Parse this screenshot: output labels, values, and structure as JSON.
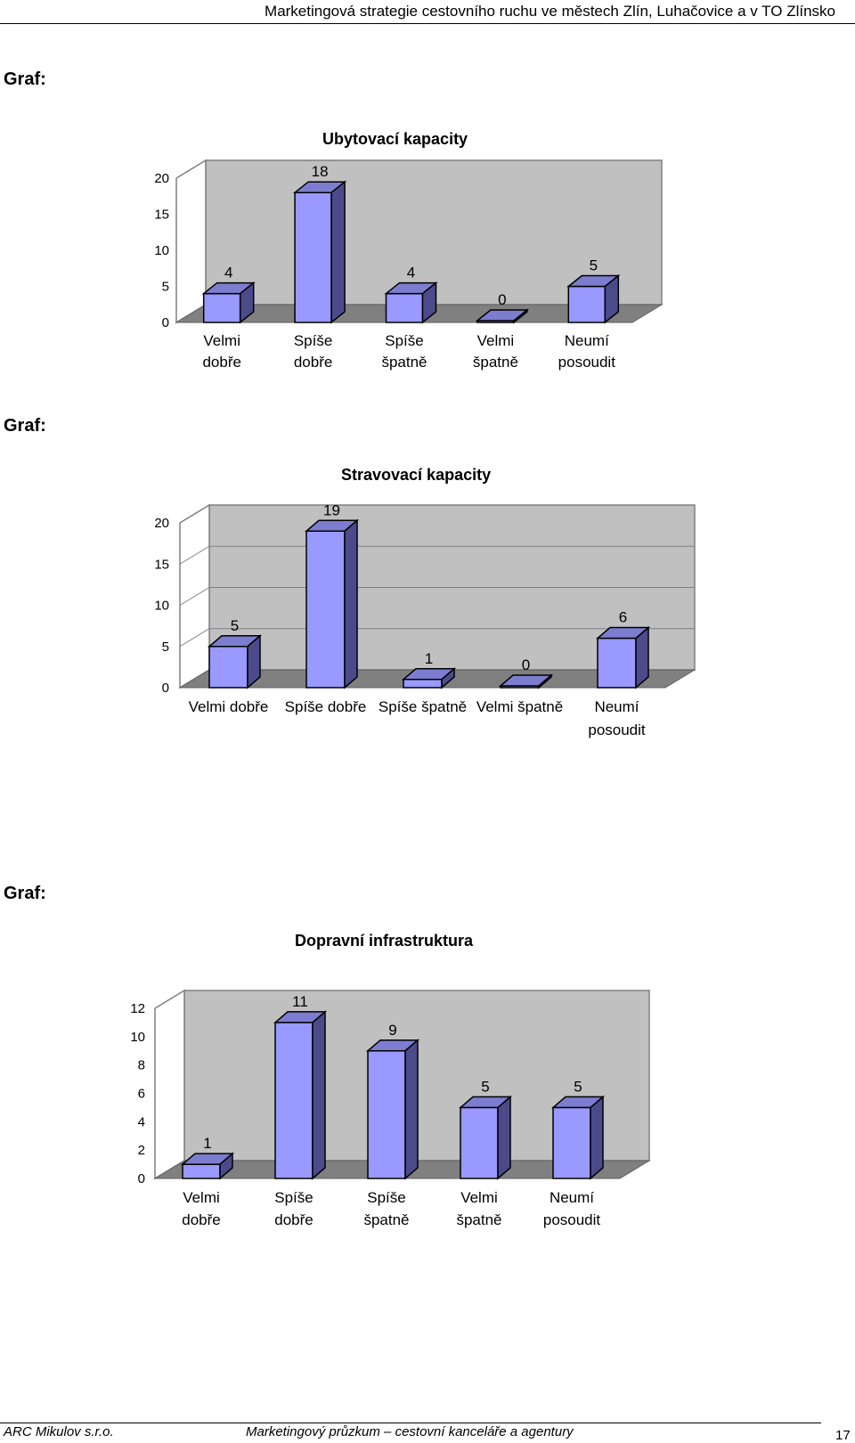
{
  "header": {
    "title": "Marketingová strategie cestovního ruchu ve městech Zlín, Luhačovice a v TO Zlínsko"
  },
  "graf_label": "Graf:",
  "chart_data": [
    {
      "type": "bar",
      "title": "Ubytovací kapacity",
      "categories": [
        [
          "Velmi",
          "dobře"
        ],
        [
          "Spíše",
          "dobře"
        ],
        [
          "Spíše",
          "špatně"
        ],
        [
          "Velmi",
          "špatně"
        ],
        [
          "Neumí",
          "posoudit"
        ]
      ],
      "values": [
        4,
        18,
        4,
        0,
        5
      ],
      "yticks": [
        "0",
        "5",
        "10",
        "15",
        "20"
      ],
      "ylim": [
        0,
        20
      ],
      "grid": false,
      "bar_color": "#9999ff"
    },
    {
      "type": "bar",
      "title": "Stravovací kapacity",
      "categories": [
        [
          "Velmi dobře"
        ],
        [
          "Spíše dobře"
        ],
        [
          "Spíše špatně"
        ],
        [
          "Velmi špatně"
        ],
        [
          "Neumí",
          "posoudit"
        ]
      ],
      "values": [
        5,
        19,
        1,
        0,
        6
      ],
      "yticks": [
        "0",
        "5",
        "10",
        "15",
        "20"
      ],
      "ylim": [
        0,
        20
      ],
      "grid": true,
      "bar_color": "#9999ff"
    },
    {
      "type": "bar",
      "title": "Dopravní infrastruktura",
      "categories": [
        [
          "Velmi",
          "dobře"
        ],
        [
          "Spíše",
          "dobře"
        ],
        [
          "Spíše",
          "špatně"
        ],
        [
          "Velmi",
          "špatně"
        ],
        [
          "Neumí",
          "posoudit"
        ]
      ],
      "values": [
        1,
        11,
        9,
        5,
        5
      ],
      "yticks": [
        "0",
        "2",
        "4",
        "6",
        "8",
        "10",
        "12"
      ],
      "ylim": [
        0,
        12
      ],
      "grid": false,
      "bar_color": "#9999ff"
    }
  ],
  "footer": {
    "company": "ARC Mikulov s.r.o.",
    "subtitle": "Marketingový průzkum – cestovní kanceláře a agentury",
    "page": "17"
  }
}
